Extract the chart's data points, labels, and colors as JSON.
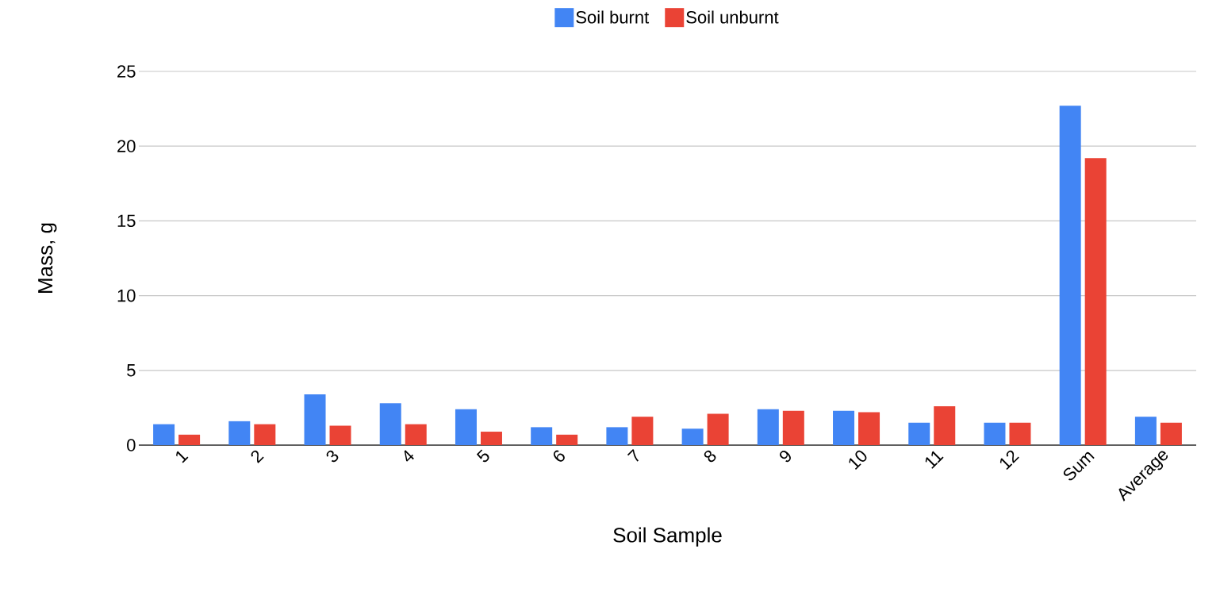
{
  "chart_data": {
    "type": "bar",
    "xlabel": "Soil Sample",
    "ylabel": "Mass, g",
    "categories": [
      "1",
      "2",
      "3",
      "4",
      "5",
      "6",
      "7",
      "8",
      "9",
      "10",
      "11",
      "12",
      "Sum",
      "Average"
    ],
    "series": [
      {
        "name": "Soil burnt",
        "color": "#4285f4",
        "values": [
          1.4,
          1.6,
          3.4,
          2.8,
          2.4,
          1.2,
          1.2,
          1.1,
          2.4,
          2.3,
          1.5,
          1.5,
          22.7,
          1.9
        ]
      },
      {
        "name": "Soil unburnt",
        "color": "#ea4335",
        "values": [
          0.7,
          1.4,
          1.3,
          1.4,
          0.9,
          0.7,
          1.9,
          2.1,
          2.3,
          2.2,
          2.6,
          1.5,
          19.2,
          1.5
        ]
      }
    ],
    "ylim": [
      0,
      25
    ],
    "yticks": [
      0,
      5,
      10,
      15,
      20,
      25
    ],
    "grid": "y",
    "legend": "top"
  }
}
